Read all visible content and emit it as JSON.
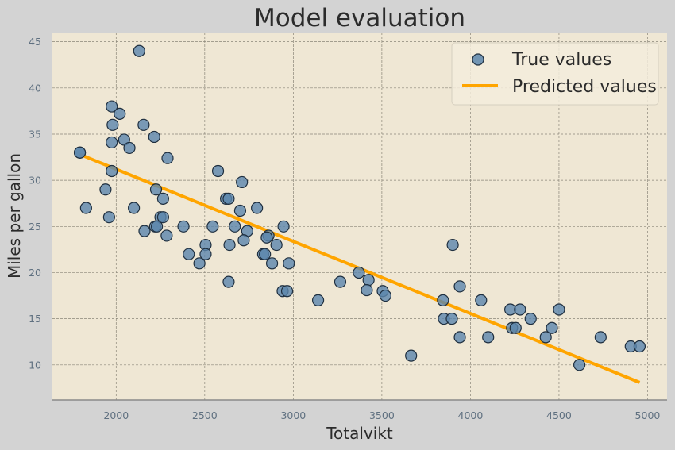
{
  "chart_data": {
    "type": "scatter",
    "title": "Model evaluation",
    "xlabel": "Totalvikt",
    "ylabel": "Miles per gallon",
    "xlim": [
      1640,
      5110
    ],
    "ylim": [
      6.2,
      46.0
    ],
    "xticks": [
      2000,
      2500,
      3000,
      3500,
      4000,
      4500,
      5000
    ],
    "yticks": [
      10,
      15,
      20,
      25,
      30,
      35,
      40,
      45
    ],
    "grid": true,
    "legend_position": "top-right",
    "series": [
      {
        "name": "True values",
        "kind": "scatter",
        "color": "#5b86ac",
        "points": [
          [
            2130,
            44
          ],
          [
            1975,
            38
          ],
          [
            2020,
            37.2
          ],
          [
            1980,
            36
          ],
          [
            2155,
            36
          ],
          [
            2215,
            34.7
          ],
          [
            2045,
            34.4
          ],
          [
            1975,
            34.1
          ],
          [
            2075,
            33.5
          ],
          [
            1795,
            33
          ],
          [
            1795,
            33
          ],
          [
            2290,
            32.4
          ],
          [
            1975,
            31
          ],
          [
            2575,
            31
          ],
          [
            2710,
            29.8
          ],
          [
            1940,
            29
          ],
          [
            2225,
            29
          ],
          [
            2620,
            28
          ],
          [
            2635,
            28
          ],
          [
            2265,
            28
          ],
          [
            1830,
            27
          ],
          [
            2100,
            27
          ],
          [
            2795,
            27
          ],
          [
            2700,
            26.7
          ],
          [
            1960,
            26
          ],
          [
            2250,
            26
          ],
          [
            2265,
            26
          ],
          [
            2220,
            25
          ],
          [
            2230,
            25
          ],
          [
            2380,
            25
          ],
          [
            2545,
            25
          ],
          [
            2670,
            25
          ],
          [
            2945,
            25
          ],
          [
            2160,
            24.5
          ],
          [
            2740,
            24.5
          ],
          [
            2285,
            24
          ],
          [
            2860,
            24
          ],
          [
            2850,
            23.8
          ],
          [
            2720,
            23.5
          ],
          [
            2505,
            23
          ],
          [
            2640,
            23
          ],
          [
            2905,
            23
          ],
          [
            3900,
            23
          ],
          [
            2410,
            22
          ],
          [
            2505,
            22
          ],
          [
            2830,
            22
          ],
          [
            2840,
            22
          ],
          [
            2470,
            21
          ],
          [
            2880,
            21
          ],
          [
            2975,
            21
          ],
          [
            3370,
            20
          ],
          [
            2635,
            19
          ],
          [
            3265,
            19
          ],
          [
            3425,
            19.2
          ],
          [
            3940,
            18.5
          ],
          [
            2940,
            18
          ],
          [
            2965,
            18
          ],
          [
            3415,
            18.1
          ],
          [
            3505,
            18
          ],
          [
            3520,
            17.5
          ],
          [
            3140,
            17
          ],
          [
            3845,
            17
          ],
          [
            4060,
            17
          ],
          [
            4225,
            16
          ],
          [
            4280,
            16
          ],
          [
            4500,
            16
          ],
          [
            3850,
            15
          ],
          [
            3895,
            15
          ],
          [
            4340,
            15
          ],
          [
            4235,
            14
          ],
          [
            4255,
            14
          ],
          [
            4460,
            14
          ],
          [
            3940,
            13
          ],
          [
            4100,
            13
          ],
          [
            4425,
            13
          ],
          [
            4735,
            13
          ],
          [
            3665,
            11
          ],
          [
            4905,
            12
          ],
          [
            4955,
            12
          ],
          [
            4615,
            10
          ]
        ]
      },
      {
        "name": "Predicted values",
        "kind": "line",
        "color": "#ffa500",
        "points": [
          [
            1795,
            32.8
          ],
          [
            4955,
            8.1
          ]
        ]
      }
    ]
  }
}
